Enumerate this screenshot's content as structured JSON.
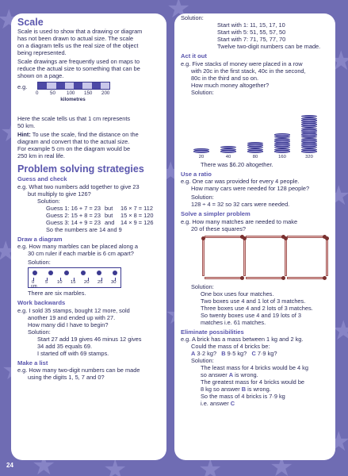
{
  "page_number": "24",
  "scale": {
    "title": "Scale",
    "intro": [
      "Scale is used to show that a drawing or diagram",
      "has not been drawn to actual size. The scale",
      "on a diagram tells us the real size of the object",
      "being represented.",
      "Scale drawings are frequently used on maps to",
      "reduce the actual size to something that can be",
      "shown on a page."
    ],
    "eg": "e.g.",
    "bar_numbers": [
      "0",
      "50",
      "100",
      "150",
      "200"
    ],
    "bar_unit": "kilometres",
    "after": [
      "Here the scale tells us that 1 cm represents",
      "50 km."
    ],
    "hint_label": "Hint:",
    "hint": [
      " To use the scale, find the distance on the",
      "diagram and convert that to the actual size.",
      "For example 5 cm on the diagram would be",
      "250 km in real life."
    ]
  },
  "strategies": {
    "title": "Problem solving strategies",
    "guess": {
      "heading": "Guess and check",
      "q": [
        "e.g.  What two numbers add together to give 23",
        "but multiply to give 126?"
      ],
      "solution": "Solution:",
      "rows": [
        [
          "Guess 1: 16 + 7 = 23",
          "but",
          "16 × 7 = 112"
        ],
        [
          "Guess 2: 15 + 8 = 23",
          "but",
          "15 × 8 = 120"
        ],
        [
          "Guess 3: 14 + 9 = 23",
          "and",
          "14 × 9 = 126"
        ]
      ],
      "answer": "So the numbers are 14 and 9"
    },
    "diagram": {
      "heading": "Draw a diagram",
      "q": [
        "e.g.  How many marbles can be placed along a",
        "30 cm ruler if each marble is 6 cm apart?"
      ],
      "solution": "Solution:",
      "ruler_numbers": [
        "0",
        "5",
        "10",
        "15",
        "20",
        "25",
        "30"
      ],
      "ruler_unit": "cm",
      "answer": "There are six marbles."
    },
    "backwards": {
      "heading": "Work backwards",
      "q": [
        "e.g.  I sold 35 stamps, bought 12 more, sold",
        "another 19 and ended up with 27.",
        "How many did I have to begin?"
      ],
      "solution": "Solution:",
      "lines": [
        "Start 27 add 19 gives 46 minus 12 gives",
        "34 add 35 equals 69.",
        "I started off with 69 stamps."
      ]
    },
    "list": {
      "heading": "Make a list",
      "q": [
        "e.g.  How many two-digit numbers can be made",
        "using the digits 1, 5, 7 and 0?"
      ],
      "solution": "Solution:",
      "lines": [
        "Start with 1:   11, 15, 17, 10",
        "Start with 5:   51, 55, 57, 50",
        "Start with 7:   71, 75, 77, 70",
        "Twelve two-digit numbers can be made."
      ]
    },
    "act": {
      "heading": "Act it out",
      "q": [
        "e.g.  Five stacks of money were placed in a row",
        "with 20c in the first stack, 40c in the second,",
        "80c in the third and so on.",
        "How much money altogether?"
      ],
      "solution": "Solution:",
      "stacks": [
        {
          "label": "20",
          "coins": 2
        },
        {
          "label": "40",
          "coins": 3
        },
        {
          "label": "80",
          "coins": 5
        },
        {
          "label": "160",
          "coins": 9
        },
        {
          "label": "320",
          "coins": 18
        }
      ],
      "answer": "There was $6.20 altogether."
    },
    "ratio": {
      "heading": "Use a ratio",
      "q": [
        "e.g.  One car was provided for every 4 people.",
        "How many cars were needed for 128 people?"
      ],
      "solution": "Solution:",
      "line": "128 ÷ 4 = 32   so 32 cars were needed."
    },
    "simpler": {
      "heading": "Solve a simpler problem",
      "q": [
        "e.g.  How many matches are needed to make",
        "20 of these squares?"
      ],
      "solution": "Solution:",
      "lines": [
        "One box uses four matches.",
        "Two boxes use 4 and 1 lot of 3 matches.",
        "Three boxes use 4 and 2 lots of 3 matches.",
        "So twenty boxes use 4 and 19 lots of 3",
        "matches i.e. 61 matches."
      ]
    },
    "eliminate": {
      "heading": "Eliminate possibilities",
      "q": [
        "e.g.  A brick has a mass between 1 kg and 2 kg.",
        "Could the mass of 4 bricks be:"
      ],
      "options": [
        {
          "letter": "A",
          "text": " 3·2 kg?"
        },
        {
          "letter": "B",
          "text": " 9·5 kg?"
        },
        {
          "letter": "C",
          "text": " 7·9 kg?"
        }
      ],
      "solution": "Solution:",
      "lines": [
        "The least mass for 4 bricks would be 4 kg",
        "so answer ",
        "The greatest mass for 4 bricks would be",
        "8 kg so answer ",
        "So the mass of 4 bricks is 7·9 kg",
        "i.e. answer "
      ],
      "line_a_letter": "A",
      "line_a_tail": " is wrong.",
      "line_b_letter": "B",
      "line_b_tail": " is wrong.",
      "line_c_letter": "C"
    }
  }
}
